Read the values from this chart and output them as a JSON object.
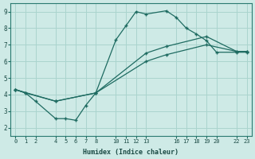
{
  "xlabel": "Humidex (Indice chaleur)",
  "bg_color": "#ceeae6",
  "grid_color": "#aad4ce",
  "line_color": "#1e6b61",
  "xlim": [
    -0.5,
    23.5
  ],
  "ylim": [
    1.5,
    9.5
  ],
  "xticks": [
    0,
    1,
    2,
    4,
    5,
    6,
    7,
    8,
    10,
    11,
    12,
    13,
    16,
    17,
    18,
    19,
    20,
    22,
    23
  ],
  "yticks": [
    2,
    3,
    4,
    5,
    6,
    7,
    8,
    9
  ],
  "line1_x": [
    0,
    1,
    2,
    4,
    5,
    6,
    7,
    8,
    10,
    11,
    12,
    13,
    15,
    16,
    17,
    18,
    19,
    20,
    22,
    23
  ],
  "line1_y": [
    4.3,
    4.1,
    3.6,
    2.55,
    2.55,
    2.45,
    3.35,
    4.1,
    7.3,
    8.15,
    9.0,
    8.85,
    9.05,
    8.65,
    8.0,
    7.65,
    7.25,
    6.55,
    6.55,
    6.55
  ],
  "line2_x": [
    0,
    1,
    4,
    8,
    13,
    15,
    19,
    22,
    23
  ],
  "line2_y": [
    4.3,
    4.1,
    3.6,
    4.1,
    6.5,
    6.9,
    7.5,
    6.6,
    6.6
  ],
  "line3_x": [
    0,
    4,
    8,
    13,
    15,
    19,
    22,
    23
  ],
  "line3_y": [
    4.3,
    3.6,
    4.1,
    6.0,
    6.4,
    7.0,
    6.6,
    6.6
  ]
}
